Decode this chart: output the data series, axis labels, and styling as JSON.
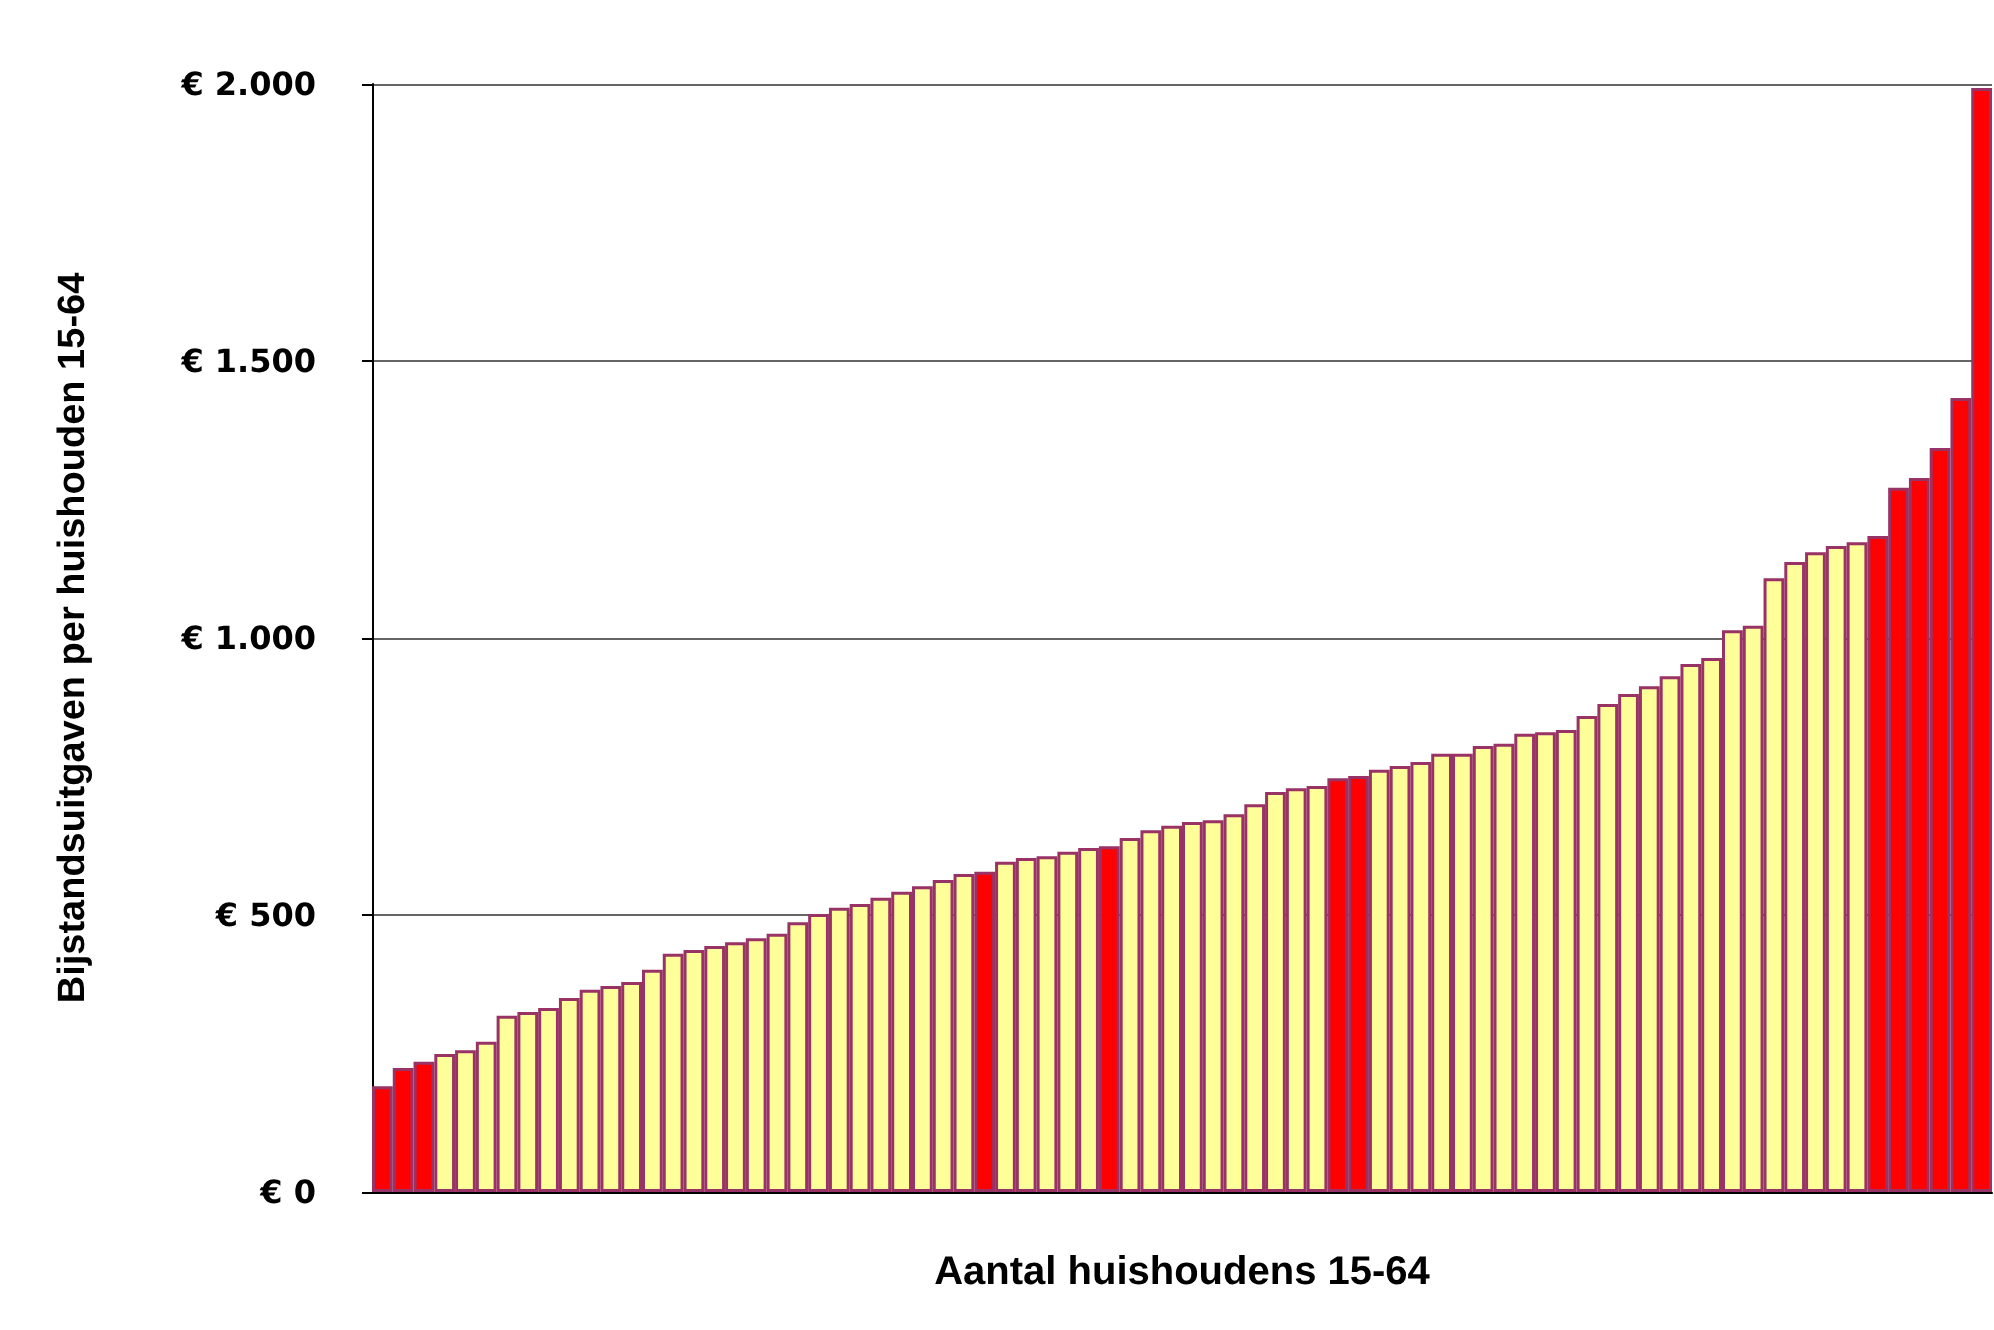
{
  "chart_data": {
    "type": "bar",
    "xlabel": "Aantal huishoudens 15-64",
    "ylabel": "Bijstandsuitgaven per huishouden 15-64",
    "categories": [
      null,
      null,
      null,
      null,
      null,
      null,
      null,
      null,
      null,
      null,
      null,
      null,
      null,
      null,
      null,
      null,
      null,
      null,
      null,
      null,
      null,
      null,
      null,
      null,
      null,
      null,
      null,
      null,
      null,
      null,
      null,
      null,
      null,
      null,
      null,
      null,
      null,
      null,
      null,
      null,
      null,
      null,
      null,
      null,
      null,
      null,
      null,
      null,
      null,
      null,
      null,
      null,
      null,
      null,
      null,
      null,
      null,
      null,
      null,
      null,
      null,
      null,
      null,
      null,
      null,
      null,
      null,
      null,
      null,
      null,
      null,
      null,
      null,
      null,
      null,
      null,
      null,
      null
    ],
    "values": [
      191,
      224,
      235,
      249,
      256,
      271,
      318,
      325,
      332,
      350,
      365,
      372,
      379,
      401,
      430,
      437,
      444,
      451,
      458,
      466,
      487,
      502,
      513,
      520,
      531,
      542,
      552,
      563,
      574,
      578,
      596,
      603,
      606,
      614,
      621,
      624,
      639,
      653,
      661,
      668,
      671,
      682,
      700,
      722,
      729,
      733,
      747,
      751,
      762,
      769,
      776,
      791,
      791,
      805,
      809,
      827,
      830,
      834,
      859,
      881,
      899,
      913,
      931,
      953,
      964,
      1014,
      1022,
      1108,
      1137,
      1155,
      1166,
      1173,
      1184,
      1271,
      1289,
      1343,
      1433,
      1993
    ],
    "colors": [
      "#ff0000",
      "#ff0000",
      "#ff0000",
      "#ffff99",
      "#ffff99",
      "#ffff99",
      "#ffff99",
      "#ffff99",
      "#ffff99",
      "#ffff99",
      "#ffff99",
      "#ffff99",
      "#ffff99",
      "#ffff99",
      "#ffff99",
      "#ffff99",
      "#ffff99",
      "#ffff99",
      "#ffff99",
      "#ffff99",
      "#ffff99",
      "#ffff99",
      "#ffff99",
      "#ffff99",
      "#ffff99",
      "#ffff99",
      "#ffff99",
      "#ffff99",
      "#ffff99",
      "#ff0000",
      "#ffff99",
      "#ffff99",
      "#ffff99",
      "#ffff99",
      "#ffff99",
      "#ff0000",
      "#ffff99",
      "#ffff99",
      "#ffff99",
      "#ffff99",
      "#ffff99",
      "#ffff99",
      "#ffff99",
      "#ffff99",
      "#ffff99",
      "#ffff99",
      "#ff0000",
      "#ff0000",
      "#ffff99",
      "#ffff99",
      "#ffff99",
      "#ffff99",
      "#ffff99",
      "#ffff99",
      "#ffff99",
      "#ffff99",
      "#ffff99",
      "#ffff99",
      "#ffff99",
      "#ffff99",
      "#ffff99",
      "#ffff99",
      "#ffff99",
      "#ffff99",
      "#ffff99",
      "#ffff99",
      "#ffff99",
      "#ffff99",
      "#ffff99",
      "#ffff99",
      "#ffff99",
      "#ffff99",
      "#ff0000",
      "#ff0000",
      "#ff0000",
      "#ff0000",
      "#ff0000",
      "#ff0000"
    ],
    "ylim": [
      0,
      2000
    ],
    "yticks": [
      {
        "value": 0,
        "label": "€ 0"
      },
      {
        "value": 500,
        "label": "€ 500"
      },
      {
        "value": 1000,
        "label": "€ 1.000"
      },
      {
        "value": 1500,
        "label": "€ 1.500"
      },
      {
        "value": 2000,
        "label": "€ 2.000"
      }
    ],
    "grid": "y",
    "tick_labels": "y"
  }
}
